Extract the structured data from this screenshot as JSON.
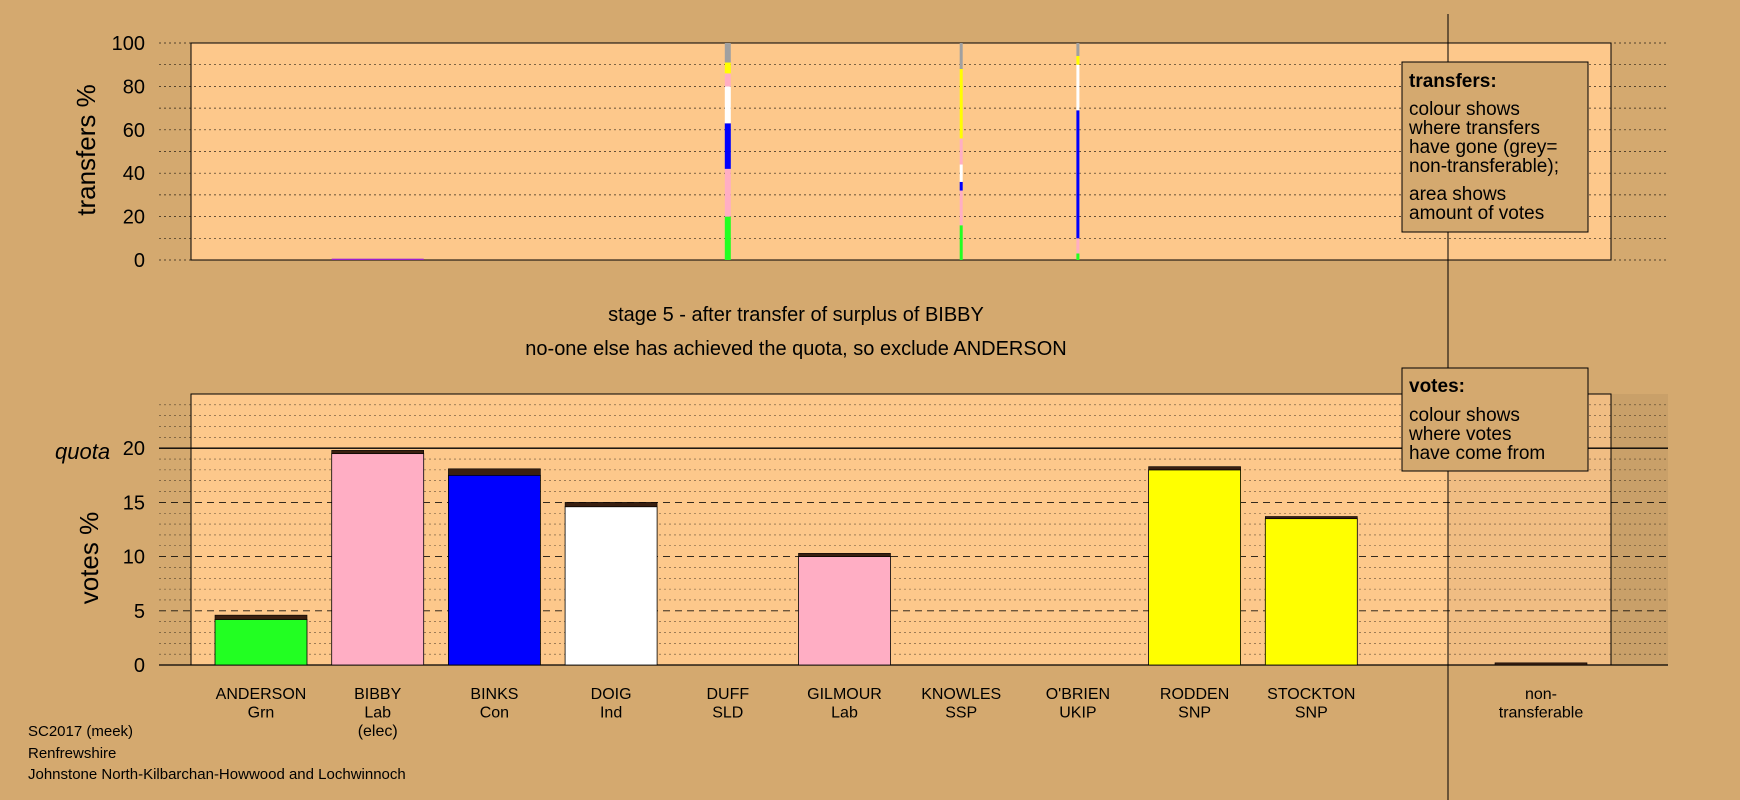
{
  "colors": {
    "background": "#d4a96f",
    "panel": "#fdc88b",
    "Grn": "#22ff22",
    "Lab": "#ffaec4",
    "Con": "#0000ff",
    "Ind": "#ffffff",
    "SNP": "#ffff00",
    "SSP": "#ff4040",
    "UKIP": "#9b1fd1",
    "nontransferable": "#a0a0a0"
  },
  "titles": {
    "stage": "stage 5 - after transfer of surplus of BIBBY",
    "action": "no-one else has achieved the quota, so exclude ANDERSON"
  },
  "footer": {
    "line1": "SC2017 (meek)",
    "line2": "Renfrewshire",
    "line3": "Johnstone North-Kilbarchan-Howwood and Lochwinnoch"
  },
  "legend_transfers": {
    "heading": "transfers:",
    "lines": [
      "colour shows",
      "where transfers",
      "have gone (grey=",
      "non-transferable);"
    ],
    "lines2": [
      "area shows",
      "amount of votes"
    ]
  },
  "legend_votes": {
    "heading": "votes:",
    "lines": [
      "colour shows",
      "where votes",
      "have come from"
    ]
  },
  "chart_data": [
    {
      "type": "bar",
      "name": "transfers",
      "ylabel": "transfers %",
      "ylim": [
        0,
        100
      ],
      "yticks": [
        0,
        20,
        40,
        60,
        80,
        100
      ],
      "grid": "dotted every 10",
      "transfer_columns": [
        {
          "candidate": "BIBBY",
          "segments": [
            {
              "party": "UKIP",
              "from": 0,
              "to": 0.6
            }
          ]
        },
        {
          "candidate": "DUFF",
          "segments": [
            {
              "party": "Grn",
              "from": 0,
              "to": 20
            },
            {
              "party": "Lab",
              "from": 20,
              "to": 42
            },
            {
              "party": "Con",
              "from": 42,
              "to": 63
            },
            {
              "party": "Ind",
              "from": 63,
              "to": 80
            },
            {
              "party": "Lab",
              "from": 80,
              "to": 86
            },
            {
              "party": "SNP",
              "from": 86,
              "to": 91
            },
            {
              "party": "nontransferable",
              "from": 91,
              "to": 100
            }
          ]
        },
        {
          "candidate": "KNOWLES",
          "segments": [
            {
              "party": "Grn",
              "from": 0,
              "to": 16
            },
            {
              "party": "Lab",
              "from": 16,
              "to": 32
            },
            {
              "party": "Con",
              "from": 32,
              "to": 36
            },
            {
              "party": "Ind",
              "from": 36,
              "to": 44
            },
            {
              "party": "Lab",
              "from": 44,
              "to": 56
            },
            {
              "party": "SNP",
              "from": 56,
              "to": 88
            },
            {
              "party": "nontransferable",
              "from": 88,
              "to": 100
            }
          ]
        },
        {
          "candidate": "O'BRIEN",
          "segments": [
            {
              "party": "Grn",
              "from": 0,
              "to": 3
            },
            {
              "party": "Lab",
              "from": 3,
              "to": 10
            },
            {
              "party": "Con",
              "from": 10,
              "to": 69
            },
            {
              "party": "Ind",
              "from": 69,
              "to": 90
            },
            {
              "party": "SNP",
              "from": 90,
              "to": 94
            },
            {
              "party": "nontransferable",
              "from": 94,
              "to": 100
            }
          ]
        }
      ]
    },
    {
      "type": "bar",
      "name": "votes",
      "ylabel": "votes %",
      "quota_label": "quota",
      "quota": 20,
      "ylim": [
        0,
        25
      ],
      "yticks": [
        0,
        5,
        10,
        15,
        20
      ],
      "grid": "dashed every 5, dotted every 1",
      "categories": [
        "ANDERSON",
        "BIBBY",
        "BINKS",
        "DOIG",
        "DUFF",
        "GILMOUR",
        "KNOWLES",
        "O'BRIEN",
        "RODDEN",
        "STOCKTON",
        "non-transferable"
      ],
      "parties": [
        "Grn",
        "Lab",
        "Con",
        "Ind",
        "SLD",
        "Lab",
        "SSP",
        "UKIP",
        "SNP",
        "SNP",
        ""
      ],
      "notes": [
        "",
        "(elec)",
        "",
        "",
        "",
        "",
        "",
        "",
        "",
        "",
        ""
      ],
      "values": [
        4.6,
        19.8,
        18.1,
        15.0,
        0,
        10.3,
        0,
        0,
        18.3,
        13.7,
        0.2
      ],
      "first_preferences": [
        4.2,
        19.5,
        17.5,
        14.6,
        0,
        10.0,
        0,
        0,
        18.0,
        13.5,
        0
      ]
    }
  ]
}
